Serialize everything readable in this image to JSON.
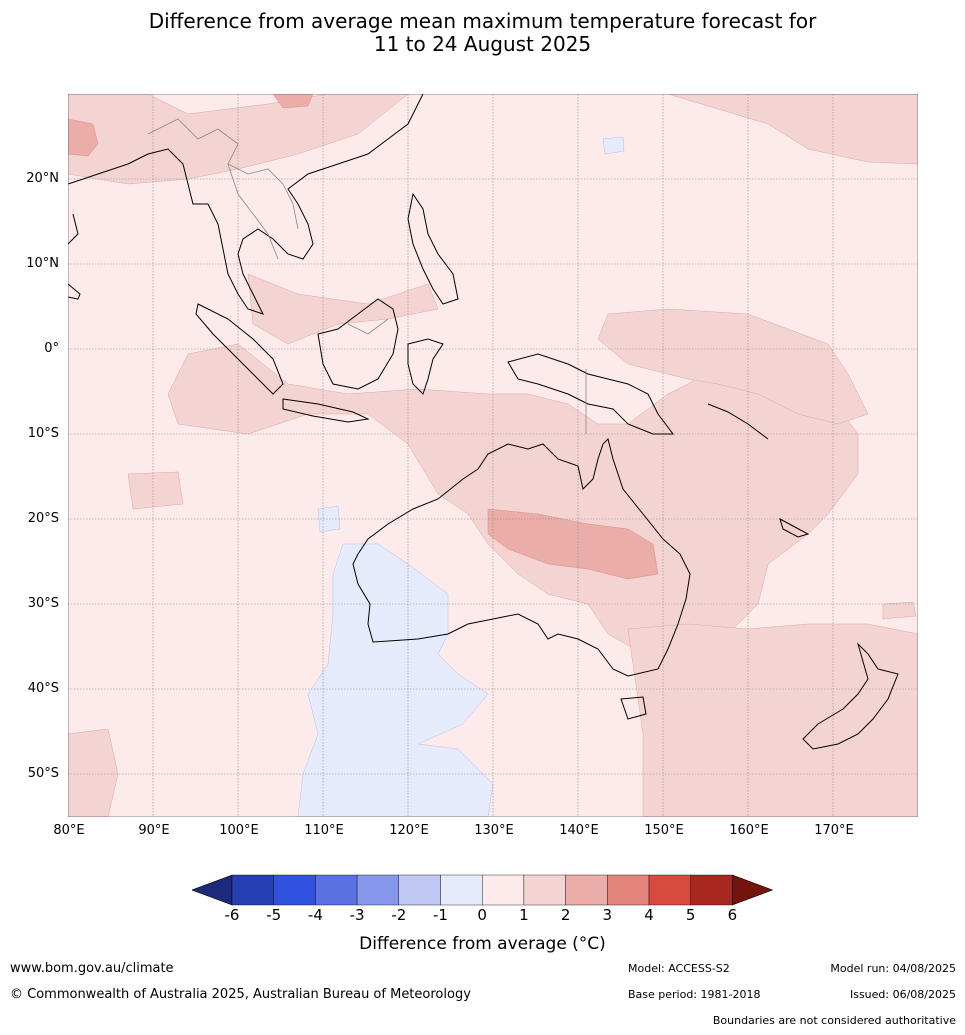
{
  "title": {
    "line1": "Difference from average mean maximum temperature forecast for",
    "line2": "11 to 24 August 2025"
  },
  "map": {
    "lat_labels": [
      "20°N",
      "10°N",
      "0°",
      "10°S",
      "20°S",
      "30°S",
      "40°S",
      "50°S"
    ],
    "lat_values": [
      20,
      10,
      0,
      -10,
      -20,
      -30,
      -40,
      -50
    ],
    "lon_labels": [
      "80°E",
      "90°E",
      "100°E",
      "110°E",
      "120°E",
      "130°E",
      "140°E",
      "150°E",
      "160°E",
      "170°E"
    ],
    "lon_values": [
      80,
      90,
      100,
      110,
      120,
      130,
      140,
      150,
      160,
      170
    ],
    "extent": {
      "lon": [
        80,
        180
      ],
      "lat": [
        -55,
        30
      ]
    }
  },
  "colorbar": {
    "ticks": [
      "-6",
      "-5",
      "-4",
      "-3",
      "-2",
      "-1",
      "0",
      "1",
      "2",
      "3",
      "4",
      "5",
      "6"
    ],
    "colors": [
      "#1b2a7a",
      "#253fb0",
      "#3152de",
      "#5b72e3",
      "#8797ec",
      "#c0c9f4",
      "#e6ebfb",
      "#fcebea",
      "#f4d4d2",
      "#ebada8",
      "#e4857d",
      "#d94a3e",
      "#a8281f",
      "#74140f"
    ],
    "label": "Difference from average ( $^\\circ$C)",
    "label_display": "Difference from average (°C)"
  },
  "footer": {
    "url": "www.bom.gov.au/climate",
    "copyright": "© Commonwealth of Australia 2025, Australian Bureau of Meteorology",
    "model": "Model: ACCESS-S2",
    "base_period": "Base period: 1981-2018",
    "model_run": "Model run: 04/08/2025",
    "issued": "Issued: 06/08/2025",
    "disclaimer": "Boundaries are not considered authoritative"
  }
}
